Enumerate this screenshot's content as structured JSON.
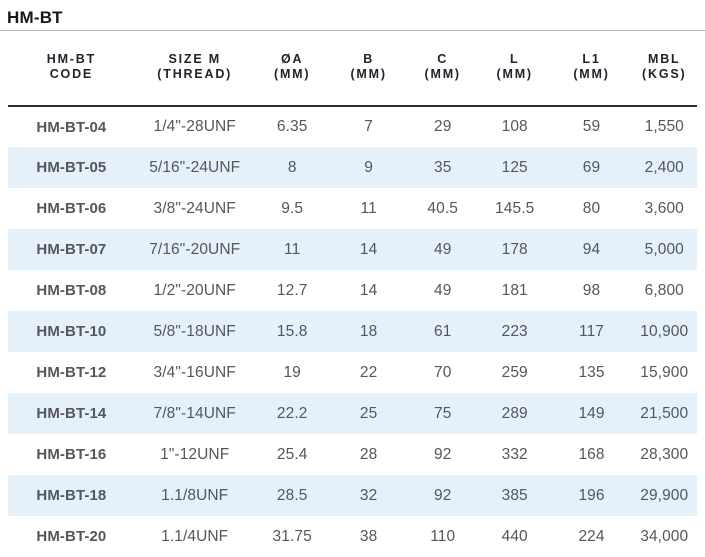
{
  "page": {
    "title": "HM-BT"
  },
  "colors": {
    "stripe": "#e4f1fa",
    "header_rule": "#272d3a",
    "title_rule": "#bbbbbb",
    "header_text": "#20232b",
    "body_text": "#54565a",
    "code_text": "#55575b",
    "title_text": "#191919"
  },
  "table": {
    "columns": [
      {
        "id": "code",
        "line1": "HM-BT",
        "line2": "CODE"
      },
      {
        "id": "size-m",
        "line1": "SIZE M",
        "line2": "(THREAD)"
      },
      {
        "id": "dia-a",
        "line1": "ØA",
        "line2": "(MM)"
      },
      {
        "id": "b",
        "line1": "B",
        "line2": "(MM)"
      },
      {
        "id": "c",
        "line1": "C",
        "line2": "(MM)"
      },
      {
        "id": "l",
        "line1": "L",
        "line2": "(MM)"
      },
      {
        "id": "l1",
        "line1": "L1",
        "line2": "(MM)"
      },
      {
        "id": "mbl",
        "line1": "MBL",
        "line2": "(KGS)"
      }
    ],
    "rows": [
      [
        "HM-BT-04",
        "1/4\"-28UNF",
        "6.35",
        "7",
        "29",
        "108",
        "59",
        "1,550"
      ],
      [
        "HM-BT-05",
        "5/16\"-24UNF",
        "8",
        "9",
        "35",
        "125",
        "69",
        "2,400"
      ],
      [
        "HM-BT-06",
        "3/8\"-24UNF",
        "9.5",
        "11",
        "40.5",
        "145.5",
        "80",
        "3,600"
      ],
      [
        "HM-BT-07",
        "7/16\"-20UNF",
        "11",
        "14",
        "49",
        "178",
        "94",
        "5,000"
      ],
      [
        "HM-BT-08",
        "1/2\"-20UNF",
        "12.7",
        "14",
        "49",
        "181",
        "98",
        "6,800"
      ],
      [
        "HM-BT-10",
        "5/8\"-18UNF",
        "15.8",
        "18",
        "61",
        "223",
        "117",
        "10,900"
      ],
      [
        "HM-BT-12",
        "3/4\"-16UNF",
        "19",
        "22",
        "70",
        "259",
        "135",
        "15,900"
      ],
      [
        "HM-BT-14",
        "7/8\"-14UNF",
        "22.2",
        "25",
        "75",
        "289",
        "149",
        "21,500"
      ],
      [
        "HM-BT-16",
        "1\"-12UNF",
        "25.4",
        "28",
        "92",
        "332",
        "168",
        "28,300"
      ],
      [
        "HM-BT-18",
        "1.1/8UNF",
        "28.5",
        "32",
        "92",
        "385",
        "196",
        "29,900"
      ],
      [
        "HM-BT-20",
        "1.1/4UNF",
        "31.75",
        "38",
        "110",
        "440",
        "224",
        "34,000"
      ]
    ]
  }
}
